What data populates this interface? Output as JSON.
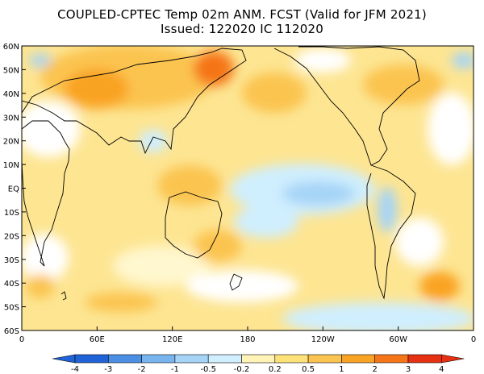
{
  "title": {
    "line1": "COUPLED-CPTEC Temp 02m ANM. FCST  (Valid for JFM 2021)",
    "line2": "Issued:  122020 IC 112020"
  },
  "axes": {
    "lat_labels": [
      "60N",
      "50N",
      "40N",
      "30N",
      "20N",
      "10N",
      "EQ",
      "10S",
      "20S",
      "30S",
      "40S",
      "50S",
      "60S"
    ],
    "lon_labels": [
      "0",
      "60E",
      "120E",
      "180",
      "120W",
      "60W",
      "0"
    ]
  },
  "colorbar": {
    "levels": [
      "-4",
      "-3",
      "-2",
      "-1",
      "-0.5",
      "-0.2",
      "0.2",
      "0.5",
      "1",
      "2",
      "3",
      "4"
    ],
    "colors": [
      "#1f63d6",
      "#4a8fe3",
      "#78b4ee",
      "#a6d4f7",
      "#cfeefe",
      "#ffffff",
      "#fff3b8",
      "#fde27a",
      "#fbc450",
      "#f9a324",
      "#f57518",
      "#e53112"
    ]
  }
}
